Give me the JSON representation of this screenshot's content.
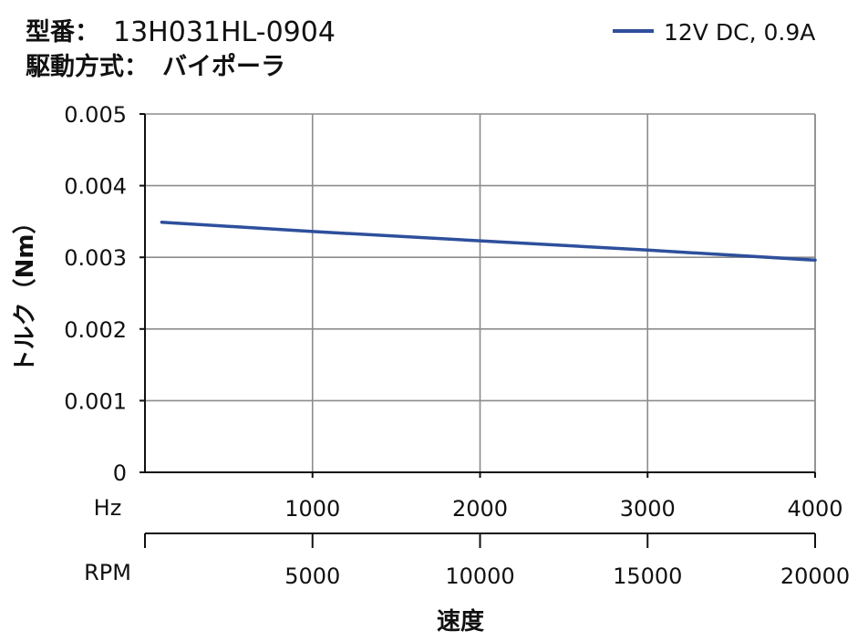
{
  "header": {
    "model_label": "型番：",
    "model_value": "13H031HL-0904",
    "drive_label": "駆動方式：",
    "drive_value": "バイポーラ"
  },
  "legend": {
    "label": "12V DC, 0.9A"
  },
  "axes": {
    "y_title": "トルク（Nm）",
    "hz_unit": "Hz",
    "rpm_unit": "RPM",
    "x_title": "速度"
  },
  "colors": {
    "series": "#2e4f9c",
    "grid": "#8c8c8c",
    "axis": "#111111"
  },
  "chart_data": {
    "type": "line",
    "title": "",
    "xlabel": "速度",
    "ylabel": "トルク（Nm）",
    "x_unit_primary": "Hz",
    "x_unit_secondary": "RPM",
    "xlim": [
      0,
      4000
    ],
    "ylim": [
      0,
      0.005
    ],
    "x_ticks_hz": [
      "1000",
      "2000",
      "3000",
      "4000"
    ],
    "x_ticks_rpm": [
      "5000",
      "10000",
      "15000",
      "20000"
    ],
    "y_ticks": [
      "0",
      "0.001",
      "0.002",
      "0.003",
      "0.004",
      "0.005"
    ],
    "grid": true,
    "legend_position": "top-right",
    "series": [
      {
        "name": "12V DC, 0.9A",
        "x": [
          100,
          1000,
          2000,
          3000,
          4000
        ],
        "y": [
          0.00349,
          0.00336,
          0.00323,
          0.0031,
          0.00296
        ]
      }
    ]
  }
}
